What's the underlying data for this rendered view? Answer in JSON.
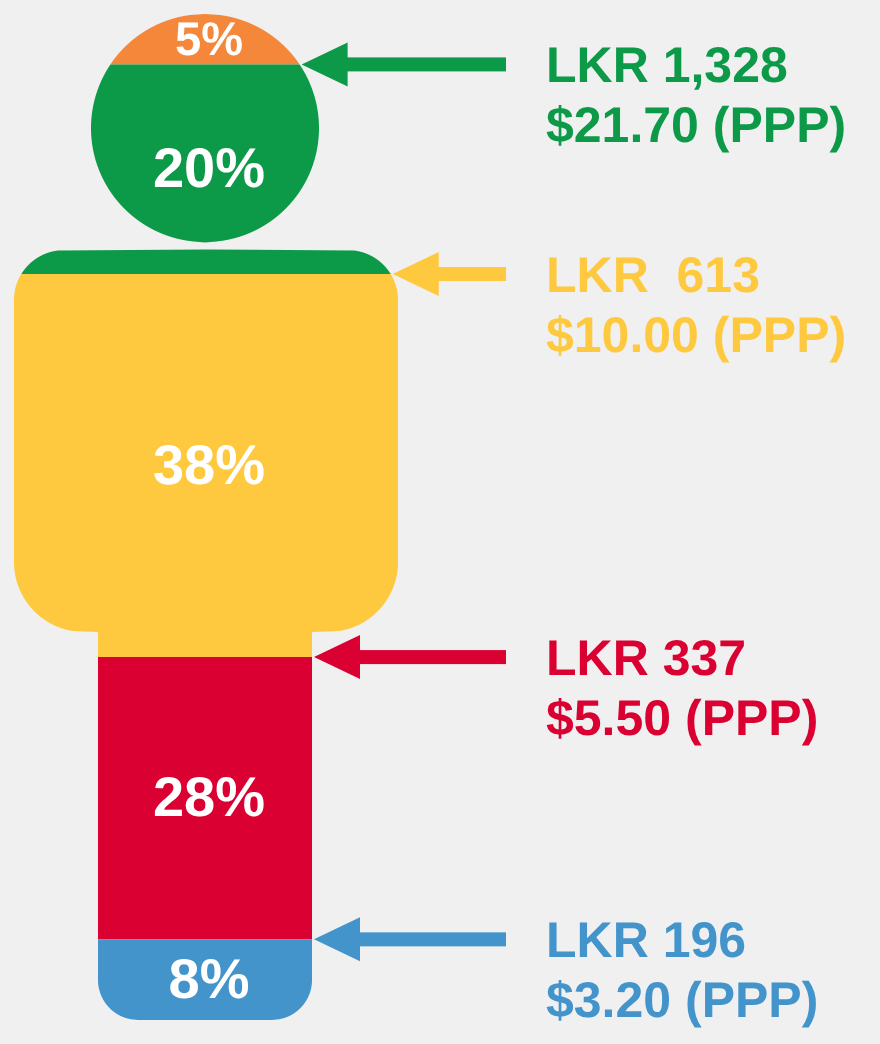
{
  "chart_data": {
    "type": "other",
    "values": [
      5,
      20,
      38,
      28,
      8
    ],
    "value_labels": [
      "5%",
      "20%",
      "38%",
      "28%",
      "8%"
    ],
    "colors": [
      "#f5873b",
      "#0d9a48",
      "#fec93e",
      "#db0032",
      "#4294cb"
    ],
    "annotations": [
      "LKR 1,328\n$21.70 (PPP)",
      "LKR  613\n$10.00 (PPP)",
      "LKR 337\n$5.50 (PPP)",
      "LKR 196\n$3.20 (PPP)"
    ]
  }
}
